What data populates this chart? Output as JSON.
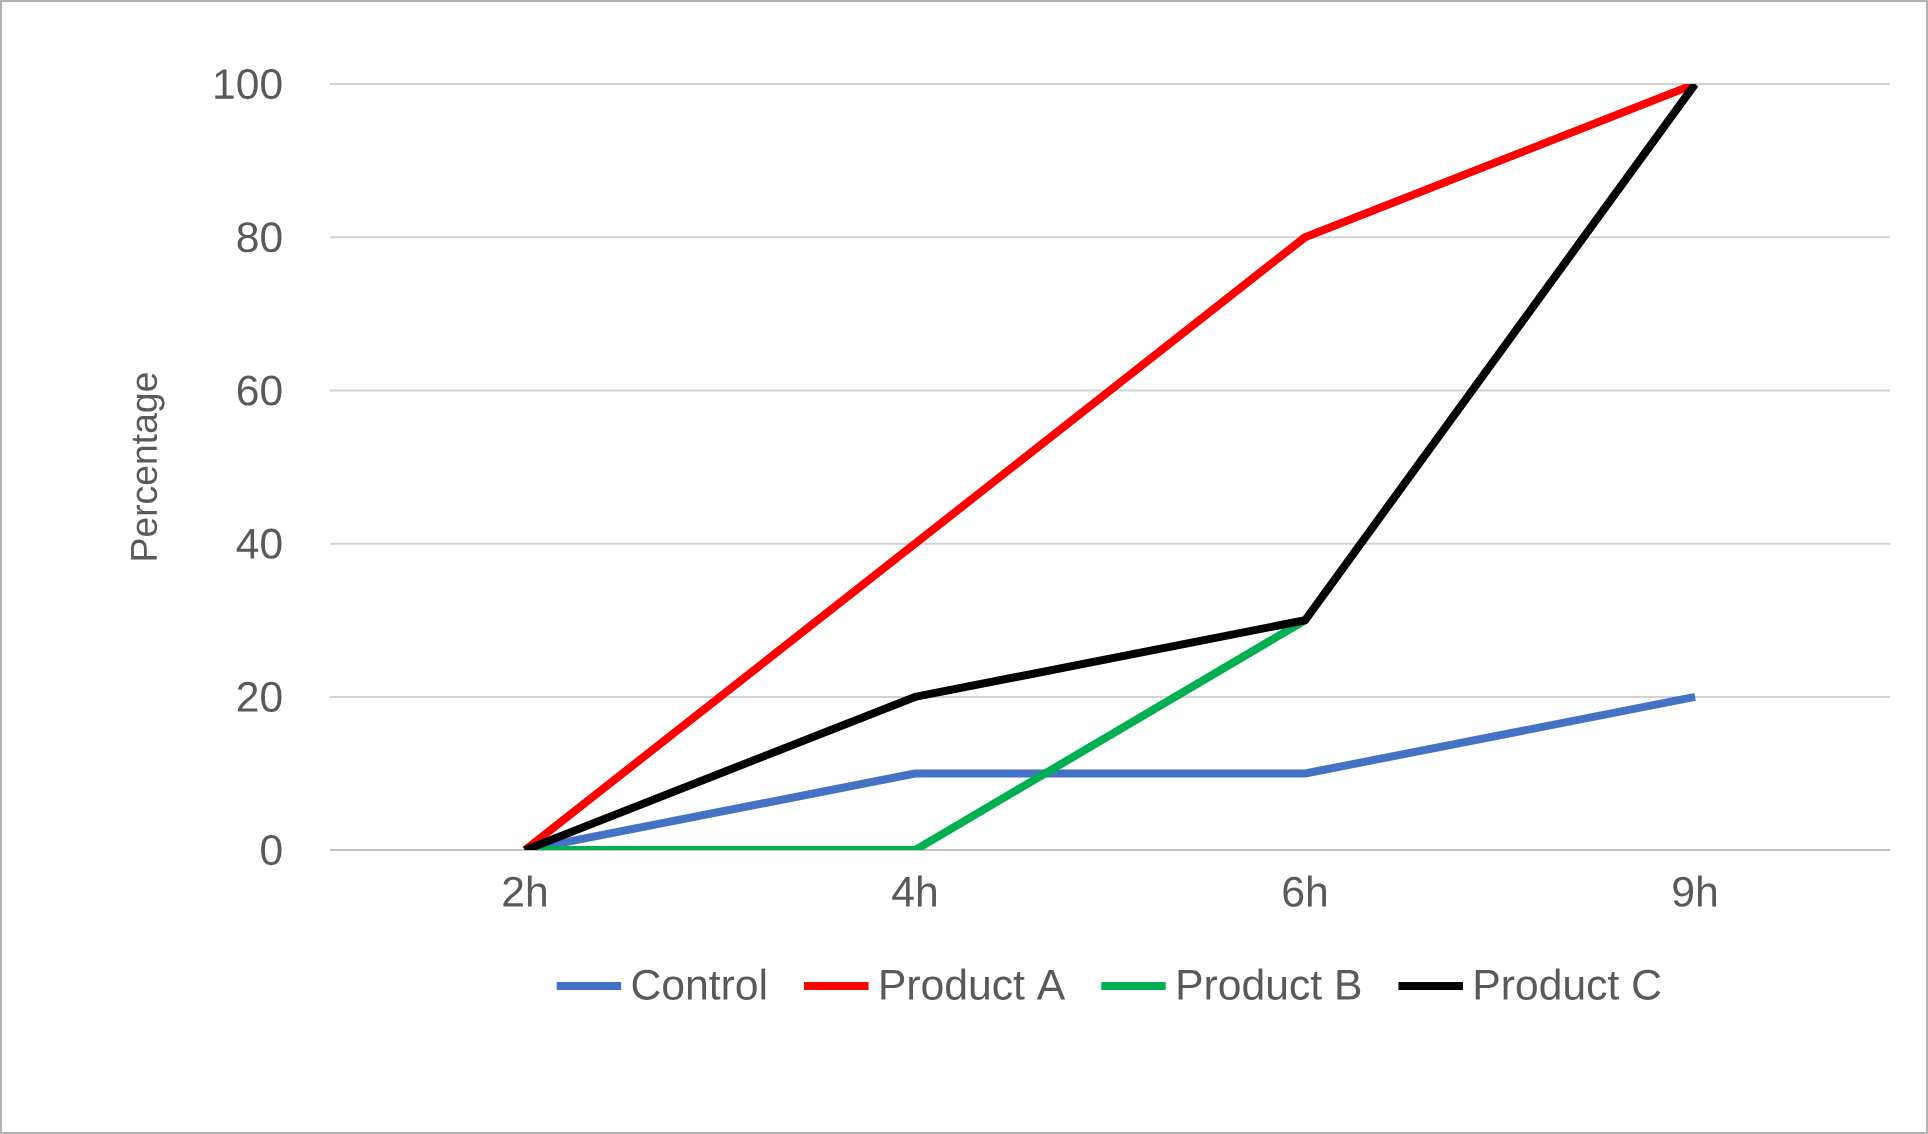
{
  "chart_data": {
    "type": "line",
    "ylabel": "Percentage",
    "categories": [
      "2h",
      "4h",
      "6h",
      "9h"
    ],
    "series": [
      {
        "name": "Control",
        "color": "#4472c4",
        "values": [
          0,
          10,
          10,
          20
        ]
      },
      {
        "name": "Product A",
        "color": "#ff0000",
        "values": [
          0,
          40,
          80,
          100
        ]
      },
      {
        "name": "Product B",
        "color": "#00b050",
        "values": [
          0,
          0,
          30,
          null
        ]
      },
      {
        "name": "Product C",
        "color": "#000000",
        "values": [
          0,
          20,
          30,
          100
        ]
      }
    ],
    "ylim": [
      0,
      100
    ],
    "yticks": [
      0,
      20,
      40,
      60,
      80,
      100
    ],
    "grid": "y",
    "legend": "bottom",
    "marker": "none",
    "line_style": "solid"
  }
}
